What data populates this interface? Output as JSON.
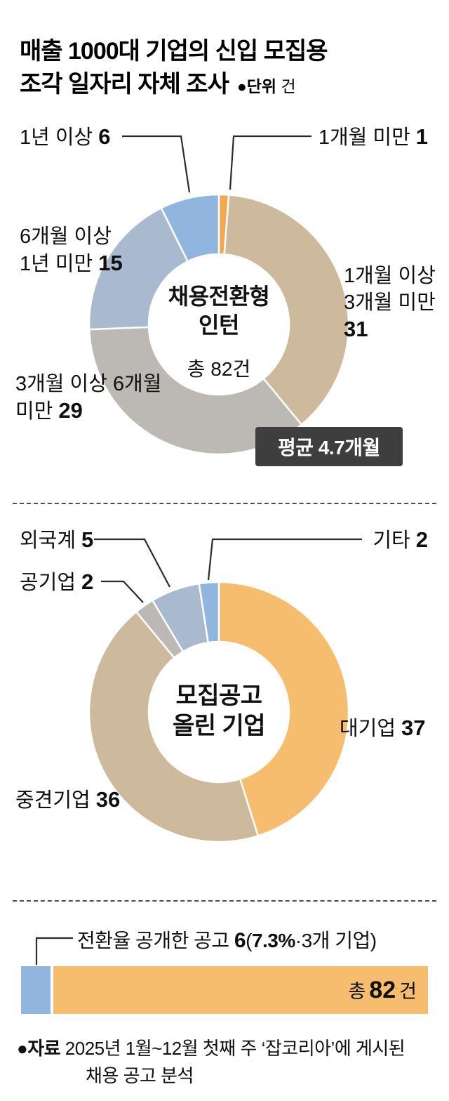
{
  "header": {
    "title_line1": "매출 1000대 기업의 신입 모집용",
    "title_line2": "조각 일자리 자체 조사",
    "unit_label": "●단위",
    "unit_value": "건"
  },
  "chart_data": [
    {
      "name": "internship-duration-donut",
      "type": "pie",
      "title": "채용전환형 인턴",
      "subtitle": "총 82건",
      "total": 82,
      "unit": "건",
      "badge": "평균 4.7개월",
      "legend_position": "around",
      "series": [
        {
          "name": "under-1-month",
          "label": "1개월 미만",
          "value": 1,
          "color": "#f4a74f"
        },
        {
          "name": "1-to-3-months",
          "label": "1개월 이상 3개월 미만",
          "value": 31,
          "color": "#cdb99c"
        },
        {
          "name": "3-to-6-months",
          "label": "3개월 이상 6개월 미만",
          "value": 29,
          "color": "#bcb8b4"
        },
        {
          "name": "6-to-12-months",
          "label": "6개월 이상 1년 미만",
          "value": 15,
          "color": "#a9bacf"
        },
        {
          "name": "over-1-year",
          "label": "1년 이상",
          "value": 6,
          "color": "#90b6e0"
        }
      ]
    },
    {
      "name": "posting-company-type-donut",
      "type": "pie",
      "title_line1": "모집공고",
      "title_line2": "올린 기업",
      "total": 82,
      "legend_position": "around",
      "series": [
        {
          "name": "large-company",
          "label": "대기업",
          "value": 37,
          "color": "#f7bd6e"
        },
        {
          "name": "mid-size-company",
          "label": "중견기업",
          "value": 36,
          "color": "#cdb99c"
        },
        {
          "name": "public-company",
          "label": "공기업",
          "value": 2,
          "color": "#bcb8b4"
        },
        {
          "name": "foreign-company",
          "label": "외국계",
          "value": 5,
          "color": "#a9bacf"
        },
        {
          "name": "other-company",
          "label": "기타",
          "value": 2,
          "color": "#90b6e0"
        }
      ]
    },
    {
      "name": "conversion-rate-disclosed-bar",
      "type": "bar",
      "annotation": {
        "label": "전환율 공개한 공고 ",
        "value": "6",
        "paren_open": "(",
        "percent": "7.3%",
        "paren_rest": "·3개 기업)"
      },
      "segments": [
        {
          "name": "disclosed",
          "value": 6,
          "color": "#90b6e0"
        },
        {
          "name": "rest",
          "value": 76,
          "color": "#f7bd6e"
        }
      ],
      "total": 82,
      "bar_label_prefix": "총",
      "bar_label_value": "82",
      "bar_label_suffix": "건"
    }
  ],
  "footer": {
    "source_label": "●자료",
    "source_line1": " 2025년 1월~12월 첫째 주 ‘잡코리아’에 게시된",
    "source_line2": "채용 공고 분석"
  }
}
